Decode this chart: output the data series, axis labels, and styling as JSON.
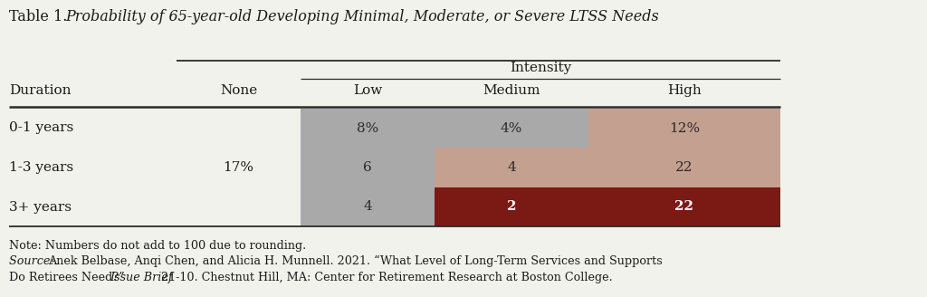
{
  "title_plain": "Table 1. ",
  "title_italic": "Probability of 65-year-old Developing Minimal, Moderate, or Severe LTSS Needs",
  "col_header_top": "Intensity",
  "col_headers": [
    "Duration",
    "None",
    "Low",
    "Medium",
    "High"
  ],
  "row_labels": [
    "0-1 years",
    "1-3 years",
    "3+ years"
  ],
  "none_value": "17%",
  "data": [
    [
      "8%",
      "4%",
      "12%"
    ],
    [
      "6",
      "4",
      "22"
    ],
    [
      "4",
      "2",
      "22"
    ]
  ],
  "cell_colors": [
    [
      "#a9a9a9",
      "#a9a9a9",
      "#c4a090"
    ],
    [
      "#a9a9a9",
      "#c4a090",
      "#c4a090"
    ],
    [
      "#a9a9a9",
      "#7b1a14",
      "#7b1a14"
    ]
  ],
  "text_colors": [
    [
      "#2b2b2b",
      "#2b2b2b",
      "#2b2b2b"
    ],
    [
      "#2b2b2b",
      "#2b2b2b",
      "#2b2b2b"
    ],
    [
      "#2b2b2b",
      "#ffffff",
      "#ffffff"
    ]
  ],
  "note1": "Note: Numbers do not add to 100 due to rounding.",
  "note2_italic": "Source: ",
  "note2_plain": "Anek Belbase, Anqi Chen, and Alicia H. Munnell. 2021. “What Level of Long-Term Services and Supports",
  "note3_plain1": "Do Retirees Need?” ",
  "note3_italic": "Issue Brief",
  "note3_plain2": "21-10. Chestnut Hill, MA: Center for Retirement Research at Boston College.",
  "bg_color": "#f2f2ed",
  "line_color": "#2b2b2b",
  "fig_width": 10.24,
  "fig_height": 3.28,
  "dpi": 100
}
